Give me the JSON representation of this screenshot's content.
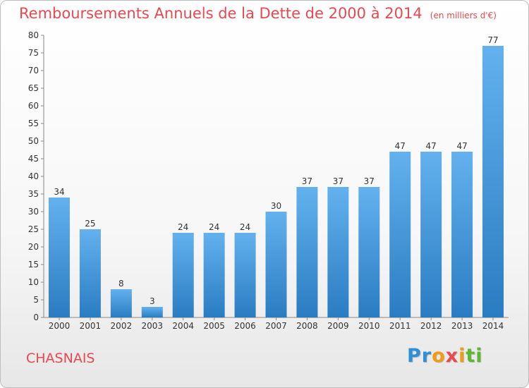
{
  "chart_data": {
    "type": "bar",
    "title": "Remboursements Annuels de la Dette de 2000 à 2014",
    "subtitle": "(en milliers d'€)",
    "categories": [
      "2000",
      "2001",
      "2002",
      "2003",
      "2004",
      "2005",
      "2006",
      "2007",
      "2008",
      "2009",
      "2010",
      "2011",
      "2012",
      "2013",
      "2014"
    ],
    "values": [
      34,
      25,
      8,
      3,
      24,
      24,
      24,
      30,
      37,
      37,
      37,
      47,
      47,
      47,
      77
    ],
    "xlabel": "",
    "ylabel": "",
    "ylim": [
      0,
      80
    ],
    "yticks": [
      0,
      5,
      10,
      15,
      20,
      25,
      30,
      35,
      40,
      45,
      50,
      55,
      60,
      65,
      70,
      75,
      80
    ],
    "grid": false,
    "bar_color": "#3d95db"
  },
  "footer": {
    "commune": "CHASNAIS",
    "logo_letters": [
      "P",
      "r",
      "o",
      "x",
      "i",
      "t",
      "i"
    ],
    "logo_colors": [
      "#2f8fd8",
      "#2f8fd8",
      "#f39c12",
      "#e8494f",
      "#f39c12",
      "#5bb832",
      "#5bb832"
    ],
    "logo_icon": "proxiti-logo"
  }
}
